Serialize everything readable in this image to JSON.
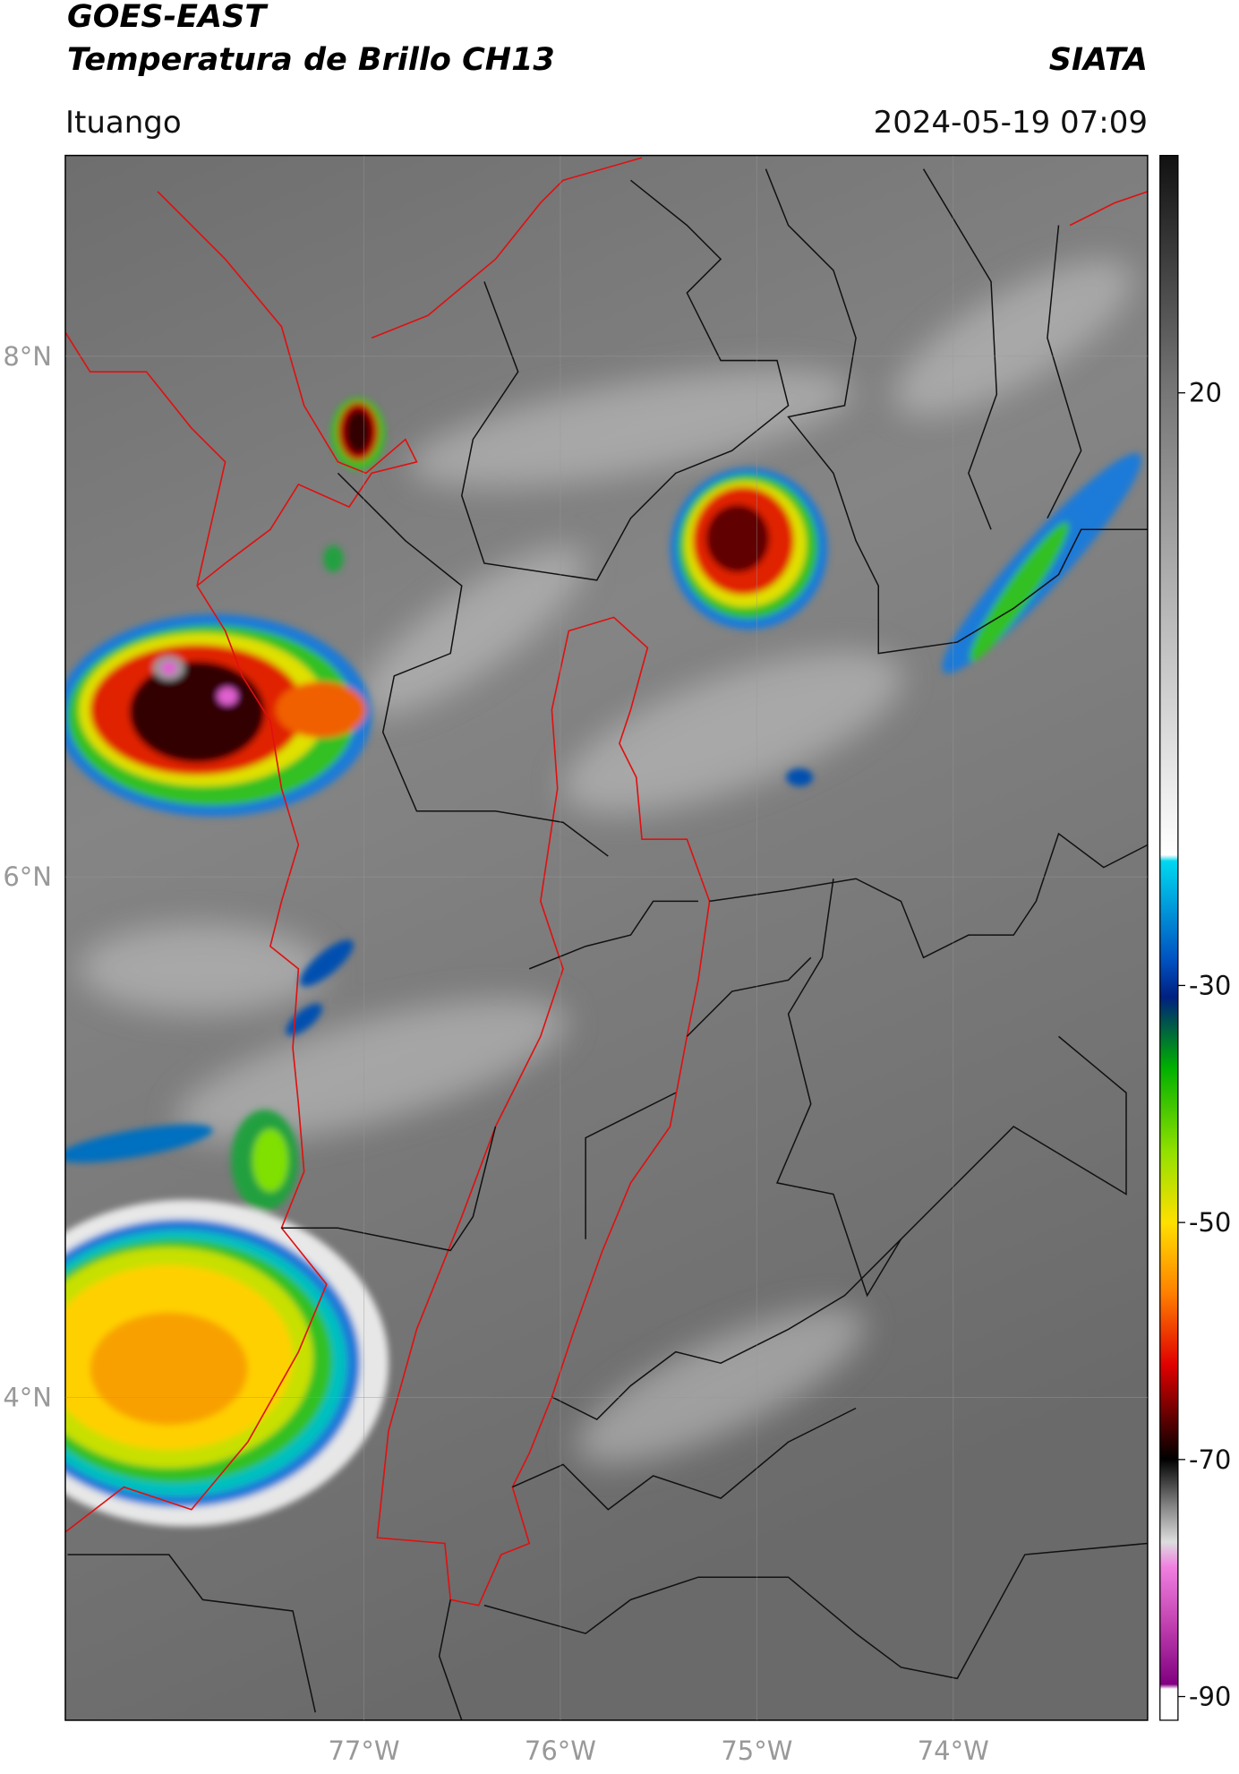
{
  "header": {
    "title_line1": "GOES-EAST",
    "title_line2": "Temperatura de Brillo CH13",
    "brand": "SIATA",
    "location": "Ituango",
    "datetime": "2024-05-19 07:09"
  },
  "map": {
    "xlim": [
      -78.52,
      -73.01
    ],
    "ylim": [
      2.76,
      8.77
    ],
    "lon_ticks": [
      {
        "value": -77,
        "label": "77°W"
      },
      {
        "value": -76,
        "label": "76°W"
      },
      {
        "value": -75,
        "label": "75°W"
      },
      {
        "value": -74,
        "label": "74°W"
      }
    ],
    "lat_ticks": [
      {
        "value": 8,
        "label": "8°N"
      },
      {
        "value": 6,
        "label": "6°N"
      },
      {
        "value": 4,
        "label": "4°N"
      }
    ]
  },
  "colorbar": {
    "lim": [
      -92,
      40
    ],
    "ticks": [
      20,
      -30,
      -50,
      -70,
      -90
    ]
  }
}
